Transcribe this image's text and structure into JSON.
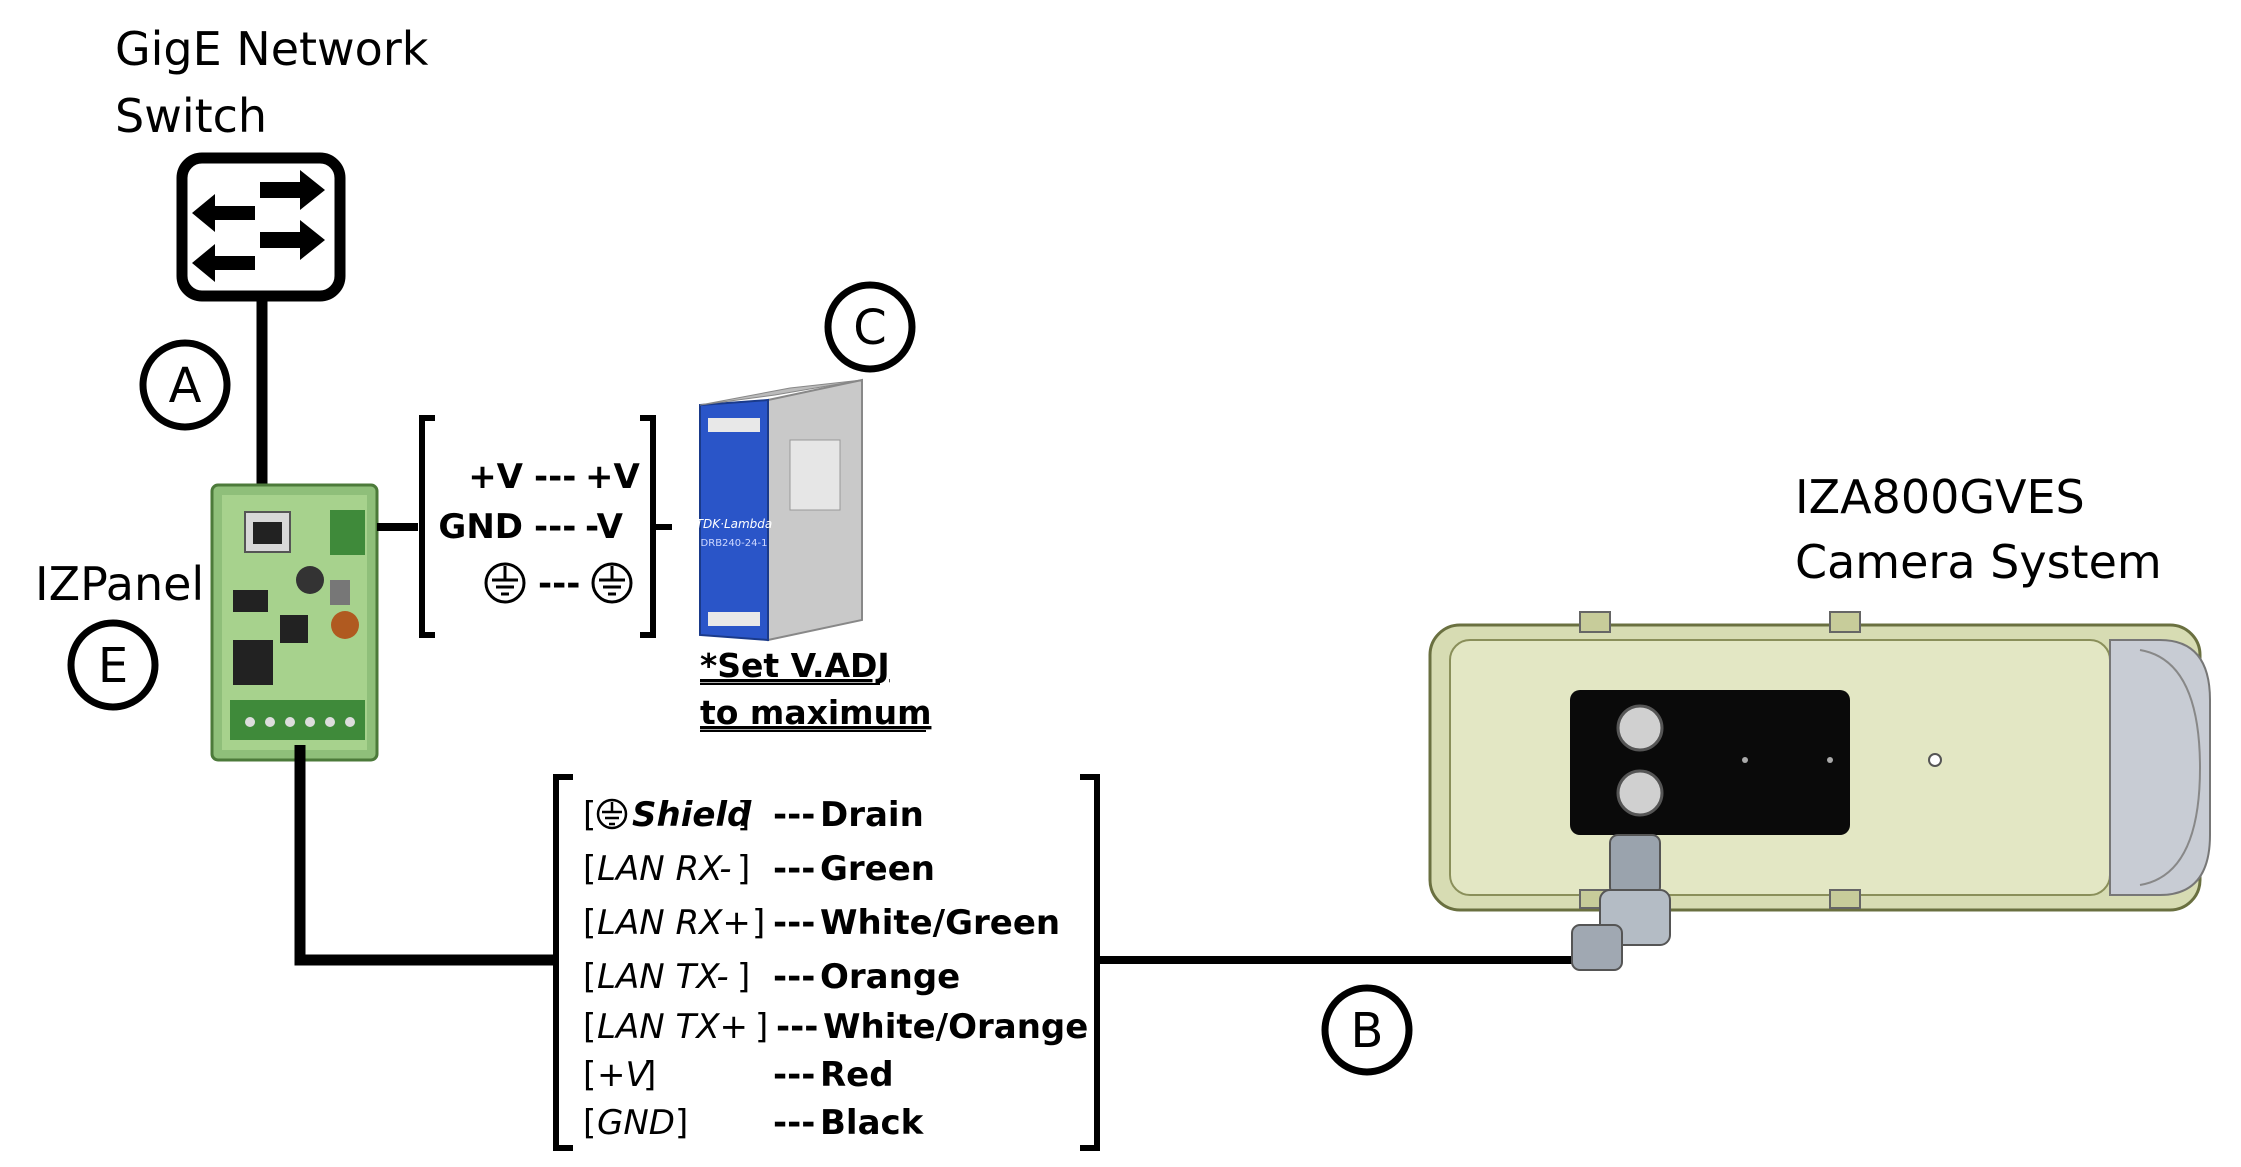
{
  "switch": {
    "title_line1": "GigE Network",
    "title_line2": "Switch"
  },
  "panel": {
    "title": "IZPanel",
    "badge": "E"
  },
  "camera": {
    "title_line1": "IZA800GVES",
    "title_line2": "Camera System"
  },
  "badges": {
    "a": "A",
    "b": "B",
    "c": "C"
  },
  "power_wiring": {
    "rows": [
      {
        "left": "+V",
        "sep": "---",
        "right": "+V"
      },
      {
        "left": "GND",
        "sep": "---",
        "right": "-V"
      },
      {
        "left": "",
        "sep": "---",
        "right": "",
        "left_icon": "ground-icon",
        "right_icon": "ground-icon"
      }
    ]
  },
  "psu": {
    "brand": "TDK·Lambda",
    "model": "DRB240-24-1",
    "note_line1": "*Set V.ADJ",
    "note_line2": "to maximum"
  },
  "cable_wiring": {
    "rows": [
      {
        "signal": "Shield",
        "sep": "---",
        "color": "Drain",
        "icon": "ground-icon"
      },
      {
        "signal": "LAN RX-",
        "sep": "---",
        "color": "Green"
      },
      {
        "signal": "LAN RX+",
        "sep": "---",
        "color": "White/Green"
      },
      {
        "signal": "LAN TX-",
        "sep": "---",
        "color": "Orange"
      },
      {
        "signal": "LAN TX+",
        "sep": "---",
        "color": "White/Orange"
      },
      {
        "signal": "+V",
        "sep": "---",
        "color": "Red"
      },
      {
        "signal": "GND",
        "sep": "---",
        "color": "Black"
      }
    ]
  },
  "colors": {
    "panel_green": "#8fbf7a",
    "psu_blue": "#2a55c8",
    "camera_body": "#cfd5a8",
    "line": "#000000"
  }
}
